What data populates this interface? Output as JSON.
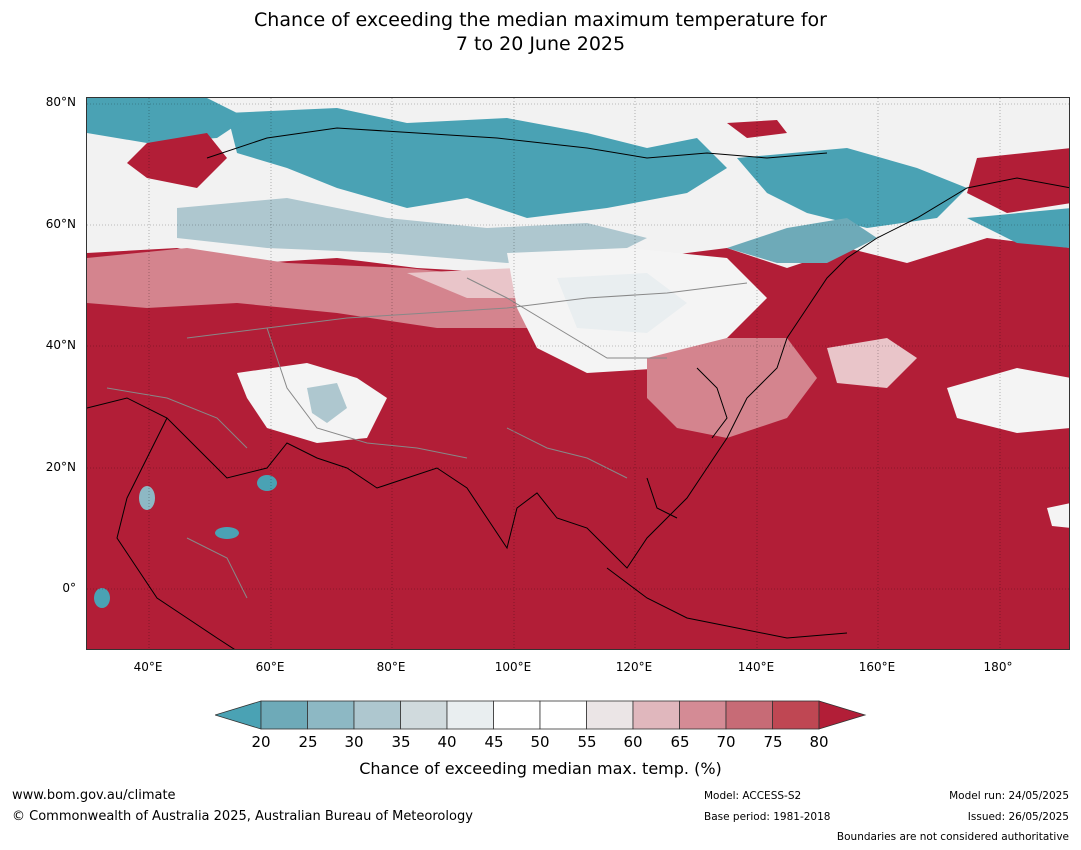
{
  "title": {
    "line1": "Chance of exceeding the median maximum temperature for",
    "line2": "7 to 20 June 2025"
  },
  "map": {
    "lat_labels": [
      "80°N",
      "60°N",
      "40°N",
      "20°N",
      "0°"
    ],
    "lon_labels": [
      "40°E",
      "60°E",
      "80°E",
      "100°E",
      "120°E",
      "140°E",
      "160°E",
      "180°"
    ],
    "colors": {
      "hot": "#b21e37",
      "warm": "#d4848e",
      "mild": "#e9c5c9",
      "neutral": "#f4f4f4",
      "cool": "#aec7cf",
      "cold": "#4aa2b4",
      "coast": "#000000",
      "border": "#888888"
    }
  },
  "colorbar": {
    "ticks": [
      "20",
      "25",
      "30",
      "35",
      "40",
      "45",
      "50",
      "55",
      "60",
      "65",
      "70",
      "75",
      "80"
    ],
    "colors": [
      "#4aa2b4",
      "#6eaab8",
      "#8db8c4",
      "#aec7cf",
      "#d0dadd",
      "#e9eef0",
      "#ffffff",
      "#ffffff",
      "#ebe5e6",
      "#e0b7bd",
      "#d48b95",
      "#c76b76",
      "#bf4753",
      "#b21e37"
    ],
    "label": "Chance of exceeding median max. temp. (%)"
  },
  "footer": {
    "website": "www.bom.gov.au/climate",
    "copyright": "© Commonwealth of Australia 2025, Australian Bureau of Meteorology",
    "model": "Model: ACCESS-S2",
    "base_period": "Base period: 1981-2018",
    "model_run": "Model run: 24/05/2025",
    "issued": "Issued: 26/05/2025",
    "disclaimer": "Boundaries are not considered authoritative"
  }
}
